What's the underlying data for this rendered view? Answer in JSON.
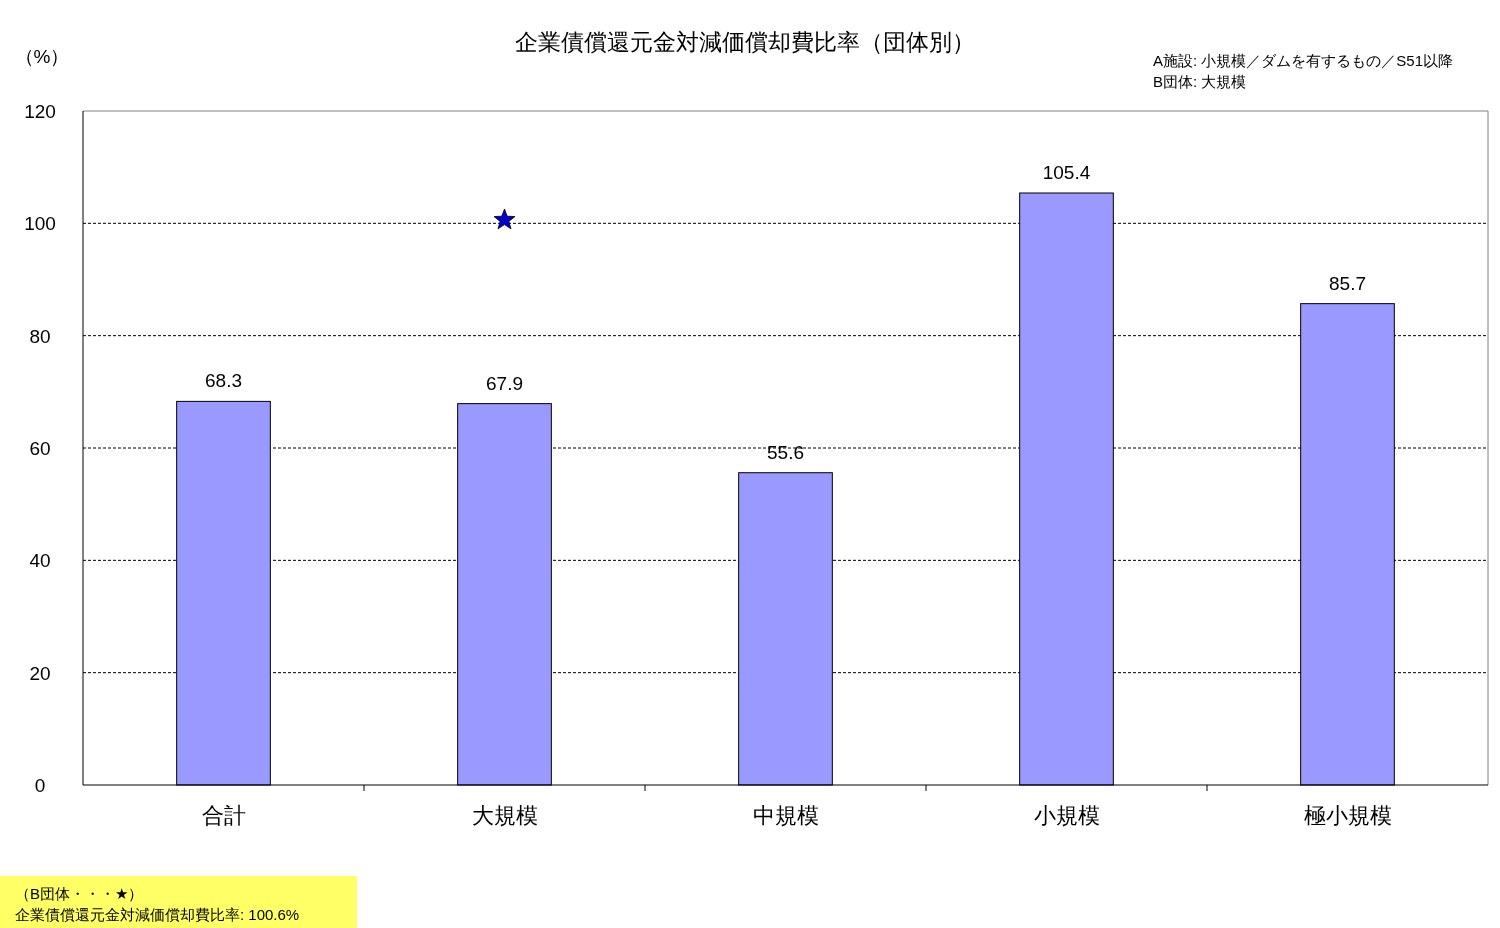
{
  "chart_data": {
    "type": "bar",
    "title": "企業債償還元金対減価償却費比率（団体別）",
    "ylabel": "（%）",
    "categories": [
      "合計",
      "大規模",
      "中規模",
      "小規模",
      "極小規模"
    ],
    "series": [
      {
        "color": "#9999ff",
        "values": [
          68.3,
          67.9,
          55.6,
          105.4,
          85.7
        ],
        "value_labels": [
          "68.3",
          "67.9",
          "55.6",
          "105.4",
          "85.7"
        ]
      },
      {
        "type": "scatter",
        "color": "#0000cc",
        "marker": "star",
        "x": [
          "大規模"
        ],
        "values": [
          100.6
        ]
      }
    ],
    "ylim": [
      0,
      120
    ],
    "yticks": [
      0,
      20,
      40,
      60,
      80,
      100,
      120
    ],
    "grid": "y",
    "annotations": [
      "A施設: 小規模／ダムを有するもの／S51以降",
      "B団体: 大規模",
      "（B団体・・・★）",
      "企業債償還元金対減価償却費比率: 100.6%"
    ]
  }
}
